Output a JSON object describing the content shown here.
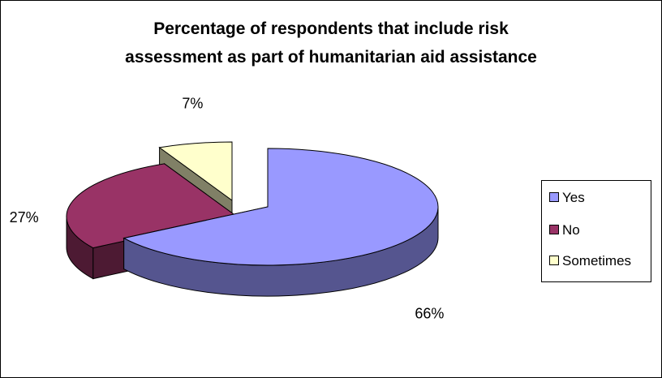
{
  "chart_data": {
    "type": "pie",
    "style": "3d-exploded",
    "title_line1": "Percentage of respondents that include risk",
    "title_line2": "assessment as part of humanitarian aid assistance",
    "categories": [
      "Yes",
      "No",
      "Sometimes"
    ],
    "values": [
      66,
      27,
      7
    ],
    "value_labels": [
      "66%",
      "27%",
      "7%"
    ],
    "colors": [
      "#9999ff",
      "#993366",
      "#ffffcc"
    ],
    "side_colors": [
      "#55558f",
      "#4d1a33",
      "#808066"
    ],
    "legend_position": "right"
  }
}
